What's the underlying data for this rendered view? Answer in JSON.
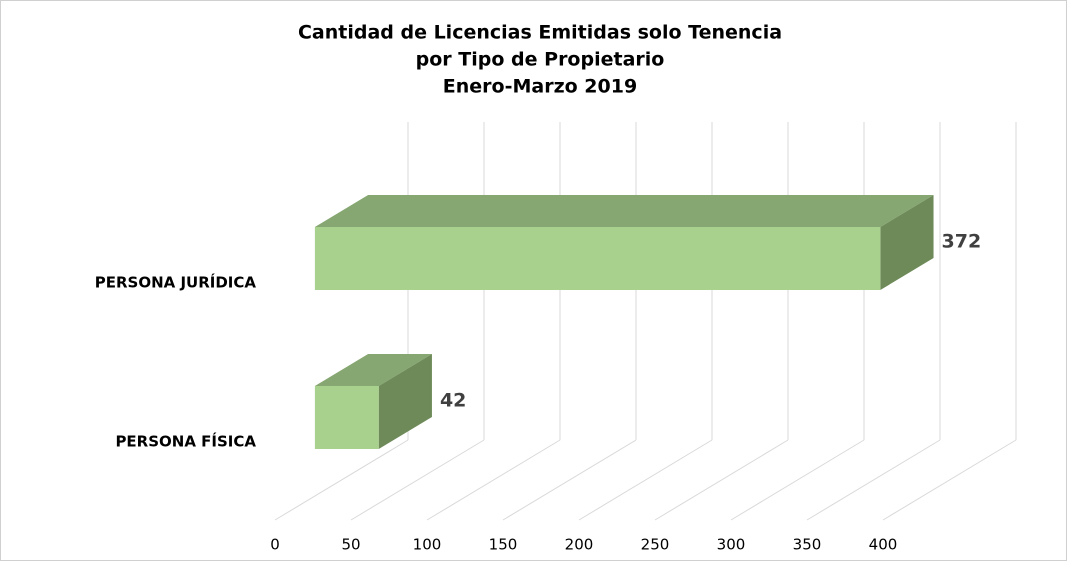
{
  "chart_data": {
    "type": "bar3d_horizontal",
    "title": [
      "Cantidad de Licencias Emitidas solo Tenencia",
      "por Tipo de Propietario",
      "Enero-Marzo 2019"
    ],
    "categories": [
      "PERSONA JURÍDICA",
      "PERSONA FÍSICA"
    ],
    "values": [
      372,
      42
    ],
    "colors": {
      "front": "#a9d18e",
      "top": "#86a771",
      "side": "#6d8a58"
    },
    "xlim": [
      0,
      400
    ],
    "xticks": [
      0,
      50,
      100,
      150,
      200,
      250,
      300,
      350,
      400
    ],
    "grid": true
  }
}
